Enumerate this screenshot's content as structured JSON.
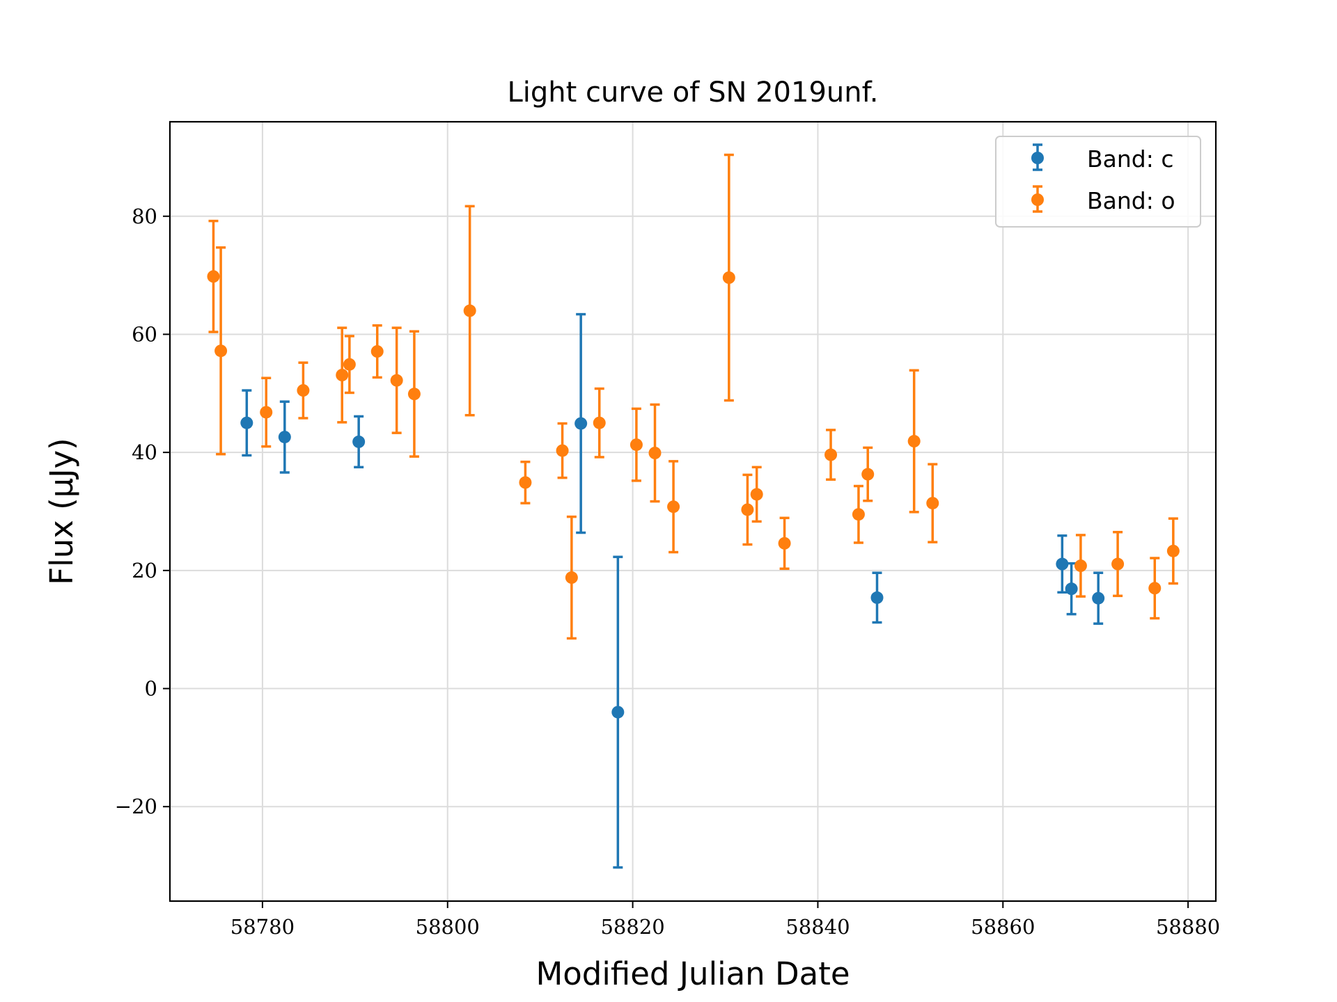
{
  "chart_data": {
    "type": "scatter",
    "title": "Light curve of SN 2019unf.",
    "xlabel": "Modified Julian Date",
    "ylabel": "Flux (μJy)",
    "xlim": [
      58770,
      58883
    ],
    "ylim": [
      -36,
      96
    ],
    "xticks": [
      58780,
      58800,
      58820,
      58840,
      58860,
      58880
    ],
    "yticks": [
      -20,
      0,
      20,
      40,
      60,
      80
    ],
    "ytick_labels": [
      "−20",
      "0",
      "20",
      "40",
      "60",
      "80"
    ],
    "grid": true,
    "legend_position": "top-right",
    "series": [
      {
        "name": "Band: c",
        "color": "#1f77b4",
        "points": [
          {
            "x": 58778.3,
            "y": 45.0,
            "err": 5.5
          },
          {
            "x": 58782.4,
            "y": 42.6,
            "err": 6.0
          },
          {
            "x": 58790.4,
            "y": 41.8,
            "err": 4.3
          },
          {
            "x": 58814.4,
            "y": 44.9,
            "err": 18.5
          },
          {
            "x": 58818.4,
            "y": -4.0,
            "err": 26.3
          },
          {
            "x": 58846.4,
            "y": 15.4,
            "err": 4.2
          },
          {
            "x": 58866.4,
            "y": 21.1,
            "err": 4.8
          },
          {
            "x": 58867.4,
            "y": 16.9,
            "err": 4.3
          },
          {
            "x": 58870.3,
            "y": 15.3,
            "err": 4.3
          }
        ]
      },
      {
        "name": "Band: o",
        "color": "#ff7f0e",
        "points": [
          {
            "x": 58774.7,
            "y": 69.8,
            "err": 9.4
          },
          {
            "x": 58775.5,
            "y": 57.2,
            "err": 17.5
          },
          {
            "x": 58780.4,
            "y": 46.8,
            "err": 5.8
          },
          {
            "x": 58784.4,
            "y": 50.5,
            "err": 4.7
          },
          {
            "x": 58788.6,
            "y": 53.1,
            "err": 8.0
          },
          {
            "x": 58789.4,
            "y": 54.9,
            "err": 4.8
          },
          {
            "x": 58792.4,
            "y": 57.1,
            "err": 4.4
          },
          {
            "x": 58794.5,
            "y": 52.2,
            "err": 8.9
          },
          {
            "x": 58796.4,
            "y": 49.9,
            "err": 10.6
          },
          {
            "x": 58802.4,
            "y": 64.0,
            "err": 17.7
          },
          {
            "x": 58808.4,
            "y": 34.9,
            "err": 3.5
          },
          {
            "x": 58812.4,
            "y": 40.3,
            "err": 4.6
          },
          {
            "x": 58813.4,
            "y": 18.8,
            "err": 10.3
          },
          {
            "x": 58816.4,
            "y": 45.0,
            "err": 5.8
          },
          {
            "x": 58820.4,
            "y": 41.3,
            "err": 6.1
          },
          {
            "x": 58822.4,
            "y": 39.9,
            "err": 8.2
          },
          {
            "x": 58824.4,
            "y": 30.8,
            "err": 7.7
          },
          {
            "x": 58830.4,
            "y": 69.6,
            "err": 20.8
          },
          {
            "x": 58832.4,
            "y": 30.3,
            "err": 5.9
          },
          {
            "x": 58833.4,
            "y": 32.9,
            "err": 4.6
          },
          {
            "x": 58836.4,
            "y": 24.6,
            "err": 4.3
          },
          {
            "x": 58841.4,
            "y": 39.6,
            "err": 4.2
          },
          {
            "x": 58844.4,
            "y": 29.5,
            "err": 4.8
          },
          {
            "x": 58845.4,
            "y": 36.3,
            "err": 4.5
          },
          {
            "x": 58850.4,
            "y": 41.9,
            "err": 12.0
          },
          {
            "x": 58852.4,
            "y": 31.4,
            "err": 6.6
          },
          {
            "x": 58868.4,
            "y": 20.8,
            "err": 5.2
          },
          {
            "x": 58872.4,
            "y": 21.1,
            "err": 5.4
          },
          {
            "x": 58876.4,
            "y": 17.0,
            "err": 5.1
          },
          {
            "x": 58878.4,
            "y": 23.3,
            "err": 5.5
          }
        ]
      }
    ]
  }
}
